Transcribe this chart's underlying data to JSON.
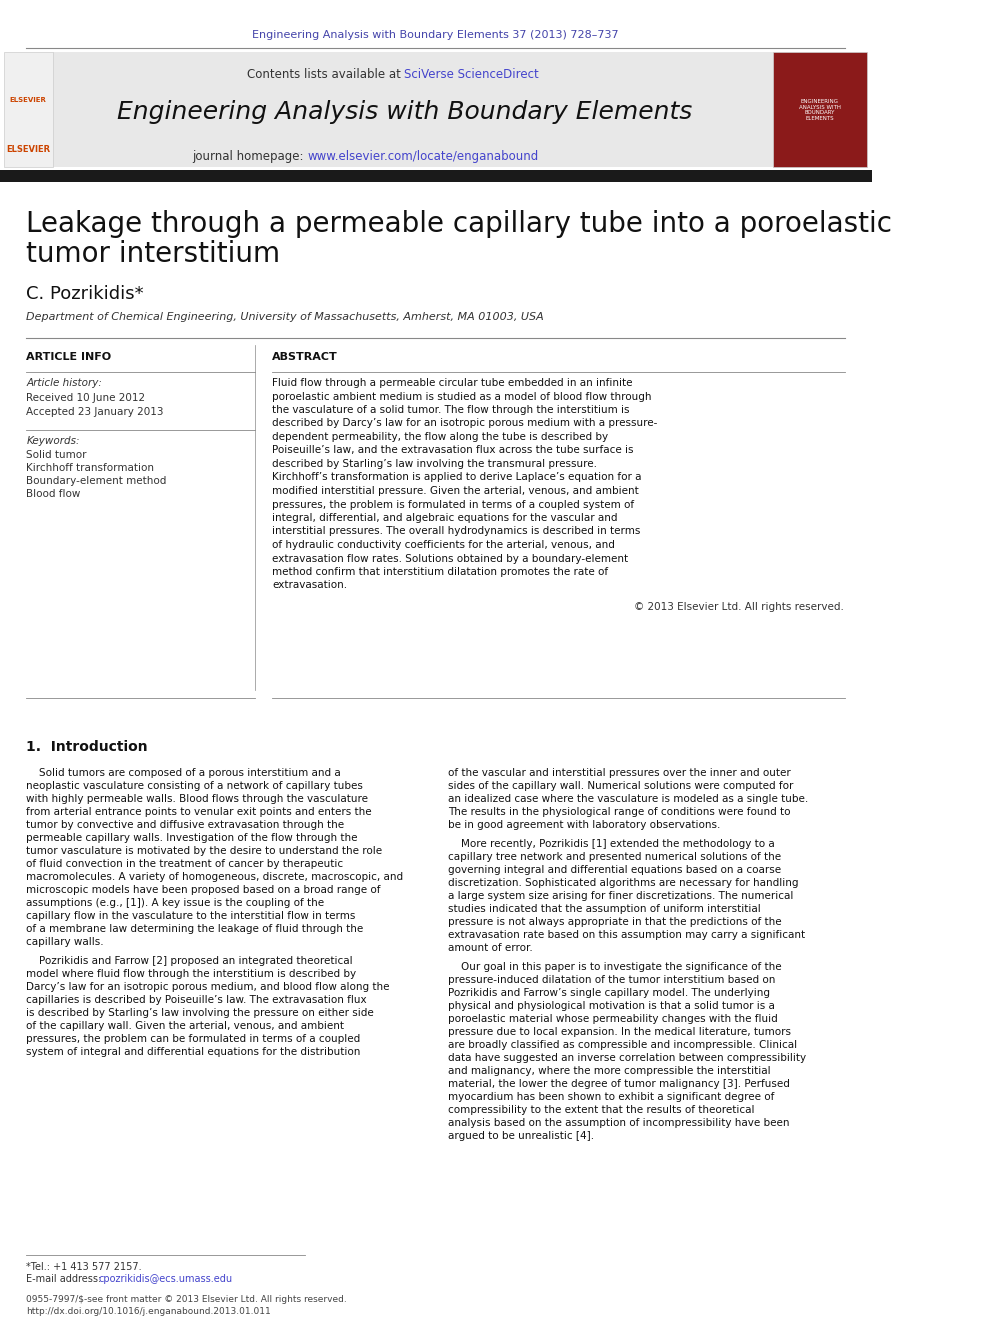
{
  "page_bg": "#ffffff",
  "header_journal_ref": "Engineering Analysis with Boundary Elements 37 (2013) 728–737",
  "header_journal_ref_color": "#4444aa",
  "header_bg": "#e8e8e8",
  "header_title": "Engineering Analysis with Boundary Elements",
  "header_contents_text": "Contents lists available at ",
  "header_sciverse": "SciVerse ScienceDirect",
  "header_journal_hp_text": "journal homepage: ",
  "header_journal_url": "www.elsevier.com/locate/enganabound",
  "black_bar_color": "#1a1a1a",
  "paper_title_line1": "Leakage through a permeable capillary tube into a poroelastic",
  "paper_title_line2": "tumor interstitium",
  "author": "C. Pozrikidis*",
  "affiliation": "Department of Chemical Engineering, University of Massachusetts, Amherst, MA 01003, USA",
  "article_info_title": "ARTICLE INFO",
  "abstract_title": "ABSTRACT",
  "article_history_label": "Article history:",
  "received_text": "Received 10 June 2012",
  "accepted_text": "Accepted 23 January 2013",
  "keywords_label": "Keywords:",
  "keyword1": "Solid tumor",
  "keyword2": "Kirchhoff transformation",
  "keyword3": "Boundary-element method",
  "keyword4": "Blood flow",
  "abstract_text": "Fluid flow through a permeable circular tube embedded in an infinite poroelastic ambient medium is studied as a model of blood flow through the vasculature of a solid tumor. The flow through the interstitium is described by Darcy’s law for an isotropic porous medium with a pressure-dependent permeability, the flow along the tube is described by Poiseuille’s law, and the extravasation flux across the tube surface is described by Starling’s law involving the transmural pressure. Kirchhoff’s transformation is applied to derive Laplace’s equation for a modified interstitial pressure. Given the arterial, venous, and ambient pressures, the problem is formulated in terms of a coupled system of integral, differential, and algebraic equations for the vascular and interstitial pressures. The overall hydrodynamics is described in terms of hydraulic conductivity coefficients for the arterial, venous, and extravasation flow rates. Solutions obtained by a boundary-element method confirm that interstitium dilatation promotes the rate of extravasation.",
  "copyright_text": "© 2013 Elsevier Ltd. All rights reserved.",
  "section1_title": "1.  Introduction",
  "intro_col1_p1": "Solid tumors are composed of a porous interstitium and a neoplastic vasculature consisting of a network of capillary tubes with highly permeable walls. Blood flows through the vasculature from arterial entrance points to venular exit points and enters the tumor by convective and diffusive extravasation through the permeable capillary walls. Investigation of the flow through the tumor vasculature is motivated by the desire to understand the role of fluid convection in the treatment of cancer by therapeutic macromolecules. A variety of homogeneous, discrete, macroscopic, and microscopic models have been proposed based on a broad range of assumptions (e.g., [1]). A key issue is the coupling of the capillary flow in the vasculature to the interstitial flow in terms of a membrane law determining the leakage of fluid through the capillary walls.",
  "intro_col1_p2": "Pozrikidis and Farrow [2] proposed an integrated theoretical model where fluid flow through the interstitium is described by Darcy’s law for an isotropic porous medium, and blood flow along the capillaries is described by Poiseuille’s law. The extravasation flux is described by Starling’s law involving the pressure on either side of the capillary wall. Given the arterial, venous, and ambient pressures, the problem can be formulated in terms of a coupled system of integral and differential equations for the distribution",
  "intro_col2_p1": "of the vascular and interstitial pressures over the inner and outer sides of the capillary wall. Numerical solutions were computed for an idealized case where the vasculature is modeled as a single tube. The results in the physiological range of conditions were found to be in good agreement with laboratory observations.",
  "intro_col2_p2": "More recently, Pozrikidis [1] extended the methodology to a capillary tree network and presented numerical solutions of the governing integral and differential equations based on a coarse discretization. Sophisticated algorithms are necessary for handling a large system size arising for finer discretizations. The numerical studies indicated that the assumption of uniform interstitial pressure is not always appropriate in that the predictions of the extravasation rate based on this assumption may carry a significant amount of error.",
  "intro_col2_p3": "Our goal in this paper is to investigate the significance of the pressure-induced dilatation of the tumor interstitium based on Pozrikidis and Farrow’s single capillary model. The underlying physical and physiological motivation is that a solid tumor is a poroelastic material whose permeability changes with the fluid pressure due to local expansion. In the medical literature, tumors are broadly classified as compressible and incompressible. Clinical data have suggested an inverse correlation between compressibility and malignancy, where the more compressible the interstitial material, the lower the degree of tumor malignancy [3]. Perfused myocardium has been shown to exhibit a significant degree of compressibility to the extent that the results of theoretical analysis based on the assumption of incompressibility have been argued to be unrealistic [4].",
  "footnote_tel": "*Tel.: +1 413 577 2157.",
  "footnote_email_label": "E-mail address: ",
  "footnote_email": "cpozrikidis@ecs.umass.edu",
  "bottom_issn": "0955-7997/$-see front matter © 2013 Elsevier Ltd. All rights reserved.",
  "bottom_doi": "http://dx.doi.org/10.1016/j.enganabound.2013.01.011"
}
